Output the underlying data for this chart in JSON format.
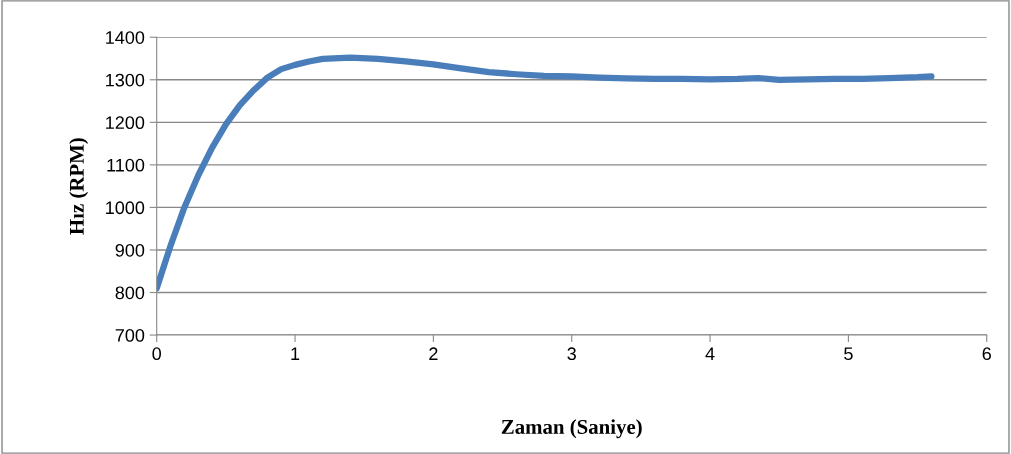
{
  "chart_data": {
    "type": "line",
    "xlabel": "Zaman (Saniye)",
    "ylabel": "Hız (RPM)",
    "x": [
      0,
      0.05,
      0.1,
      0.2,
      0.3,
      0.4,
      0.5,
      0.6,
      0.7,
      0.8,
      0.9,
      1.0,
      1.1,
      1.2,
      1.4,
      1.6,
      1.8,
      2.0,
      2.2,
      2.4,
      2.6,
      2.8,
      3.0,
      3.2,
      3.4,
      3.6,
      3.8,
      4.0,
      4.2,
      4.35,
      4.5,
      4.7,
      4.9,
      5.1,
      5.3,
      5.5,
      5.6
    ],
    "series": [
      {
        "color": "#4a7ebb",
        "values": [
          810,
          860,
          910,
          1000,
          1075,
          1140,
          1195,
          1240,
          1275,
          1305,
          1325,
          1335,
          1343,
          1349,
          1352,
          1349,
          1343,
          1336,
          1327,
          1318,
          1313,
          1309,
          1308,
          1305,
          1303,
          1302,
          1302,
          1301,
          1302,
          1304,
          1300,
          1301,
          1302,
          1302,
          1304,
          1306,
          1308
        ]
      }
    ],
    "xlim": [
      0,
      6
    ],
    "xticks": [
      0,
      1,
      2,
      3,
      4,
      5,
      6
    ],
    "ylim": [
      700,
      1400
    ],
    "yticks": [
      700,
      800,
      900,
      1000,
      1100,
      1200,
      1300,
      1400
    ],
    "grid": "y",
    "legend": false,
    "marker": "none",
    "line_style": "solid"
  }
}
